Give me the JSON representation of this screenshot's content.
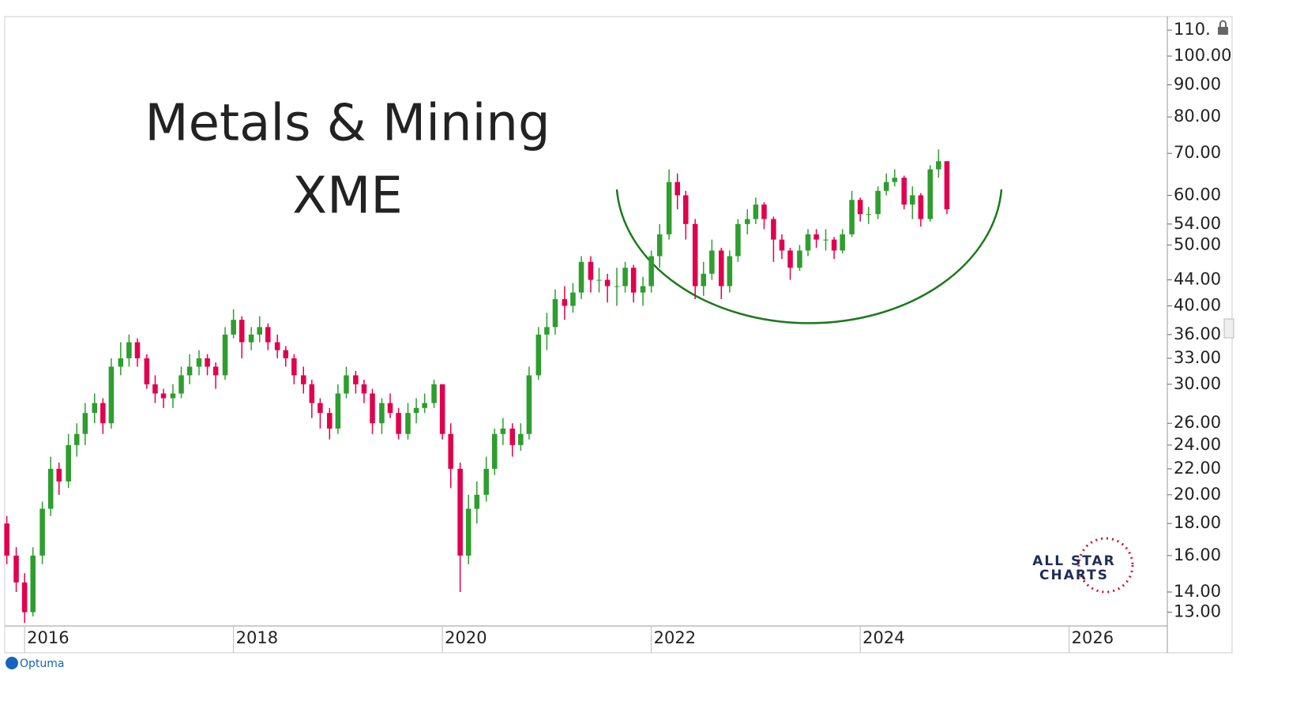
{
  "chart_data": {
    "type": "candlestick",
    "title": "Metals & Mining",
    "subtitle": "XME",
    "log_scale": true,
    "up_color": "#2e9e2e",
    "down_color": "#e0004d",
    "xlim": [
      2015.81,
      2026.94
    ],
    "xticks": [
      2016,
      2018,
      2020,
      2022,
      2024,
      2026
    ],
    "ylim": [
      12.36,
      115.6
    ],
    "yticks": [
      {
        "value": 110,
        "label": "110."
      },
      {
        "value": 100,
        "label": "100.00"
      },
      {
        "value": 90,
        "label": "90.00"
      },
      {
        "value": 80,
        "label": "80.00"
      },
      {
        "value": 70,
        "label": "70.00"
      },
      {
        "value": 60,
        "label": "60.00"
      },
      {
        "value": 54,
        "label": "54.00"
      },
      {
        "value": 50,
        "label": "50.00"
      },
      {
        "value": 44,
        "label": "44.00"
      },
      {
        "value": 40,
        "label": "40.00"
      },
      {
        "value": 36,
        "label": "36.00"
      },
      {
        "value": 33,
        "label": "33.00"
      },
      {
        "value": 30,
        "label": "30.00"
      },
      {
        "value": 26,
        "label": "26.00"
      },
      {
        "value": 24,
        "label": "24.00"
      },
      {
        "value": 22,
        "label": "22.00"
      },
      {
        "value": 20,
        "label": "20.00"
      },
      {
        "value": 18,
        "label": "18.00"
      },
      {
        "value": 16,
        "label": "16.00"
      },
      {
        "value": 14,
        "label": "14.00"
      },
      {
        "value": 13,
        "label": "13.00"
      }
    ],
    "x": [
      2015.83,
      2015.92,
      2016.0,
      2016.08,
      2016.17,
      2016.25,
      2016.33,
      2016.42,
      2016.5,
      2016.58,
      2016.67,
      2016.75,
      2016.83,
      2016.92,
      2017.0,
      2017.08,
      2017.17,
      2017.25,
      2017.33,
      2017.42,
      2017.5,
      2017.58,
      2017.67,
      2017.75,
      2017.83,
      2017.92,
      2018.0,
      2018.08,
      2018.17,
      2018.25,
      2018.33,
      2018.42,
      2018.5,
      2018.58,
      2018.67,
      2018.75,
      2018.83,
      2018.92,
      2019.0,
      2019.08,
      2019.17,
      2019.25,
      2019.33,
      2019.42,
      2019.5,
      2019.58,
      2019.67,
      2019.75,
      2019.83,
      2019.92,
      2020.0,
      2020.08,
      2020.17,
      2020.25,
      2020.33,
      2020.42,
      2020.5,
      2020.58,
      2020.67,
      2020.75,
      2020.83,
      2020.92,
      2021.0,
      2021.08,
      2021.17,
      2021.25,
      2021.33,
      2021.42,
      2021.5,
      2021.58,
      2021.67,
      2021.75,
      2021.83,
      2021.92,
      2022.0,
      2022.08,
      2022.17,
      2022.25,
      2022.33,
      2022.42,
      2022.5,
      2022.58,
      2022.67,
      2022.75,
      2022.83,
      2022.92,
      2023.0,
      2023.08,
      2023.17,
      2023.25,
      2023.33,
      2023.42,
      2023.5,
      2023.58,
      2023.67,
      2023.75,
      2023.83,
      2023.92,
      2024.0,
      2024.08,
      2024.17,
      2024.25,
      2024.33,
      2024.42,
      2024.5,
      2024.58,
      2024.67,
      2024.75,
      2024.83
    ],
    "open": [
      18,
      16,
      14.5,
      13,
      16,
      19,
      22,
      21,
      24,
      25,
      27,
      28,
      26,
      32,
      33,
      35,
      33,
      30,
      29,
      28.5,
      29,
      31,
      32,
      33,
      32,
      31,
      36,
      38,
      35,
      36,
      37,
      35,
      34,
      33,
      31,
      30,
      28,
      27,
      25.5,
      29,
      31,
      30,
      29,
      26,
      28,
      27,
      25,
      27,
      27.5,
      28,
      30,
      25,
      22,
      16,
      19,
      20,
      22,
      25,
      25.5,
      24,
      25,
      31,
      36,
      37,
      41,
      40,
      42,
      47,
      44,
      44,
      43,
      43,
      46,
      42,
      43,
      48,
      52,
      63,
      60,
      54,
      43,
      45,
      49,
      43,
      48,
      54,
      55,
      58,
      55,
      51,
      49,
      46,
      49,
      52,
      51,
      51,
      49,
      52,
      59,
      56,
      56,
      61,
      63,
      64,
      58,
      60,
      55,
      66,
      68
    ],
    "high": [
      18.5,
      16.5,
      15,
      16.5,
      19.5,
      23,
      22.5,
      25,
      26,
      28,
      29,
      28.5,
      33,
      35,
      36,
      35.5,
      33.5,
      31,
      29.5,
      30,
      32,
      33.5,
      34,
      33.5,
      32.5,
      37,
      39.5,
      38.5,
      37,
      38.5,
      37.5,
      36,
      34.5,
      33.5,
      32,
      30.5,
      28.5,
      27.5,
      30,
      32,
      31.5,
      30.5,
      29.5,
      28.5,
      29,
      27.5,
      28,
      28.5,
      29,
      30.5,
      30,
      26,
      22.5,
      20,
      21,
      23,
      25.5,
      26.5,
      26,
      26,
      32,
      37,
      39,
      42.5,
      43,
      43.5,
      48,
      48,
      46,
      45,
      46,
      47,
      46.5,
      44.5,
      49,
      54,
      66,
      65,
      61,
      55,
      47,
      51,
      49.5,
      49,
      55,
      57,
      59.5,
      58.5,
      55.5,
      52,
      49.5,
      50,
      53,
      53,
      53,
      51.5,
      53,
      61,
      59.5,
      57.5,
      62,
      65,
      66,
      64.5,
      62,
      60.5,
      67,
      71,
      68
    ],
    "low": [
      15.5,
      14,
      12.5,
      12.8,
      15.5,
      18.5,
      20,
      20.5,
      23,
      24,
      26,
      25,
      25.5,
      31,
      32,
      32,
      29.5,
      28,
      27.5,
      27.5,
      28.5,
      30,
      31,
      31,
      29.5,
      30.5,
      35.5,
      33,
      34,
      35,
      34,
      33,
      32,
      30,
      29,
      26.5,
      25.5,
      24.5,
      25,
      28.5,
      29,
      28,
      25,
      25,
      26.5,
      24.5,
      24.5,
      26,
      27,
      27.5,
      24.5,
      20.5,
      14,
      15.5,
      18,
      19.5,
      21.5,
      24,
      23,
      23.5,
      24.5,
      30.5,
      34,
      36,
      38,
      39,
      41,
      42,
      42,
      40.5,
      40,
      42,
      40.5,
      40,
      42,
      46,
      51,
      57,
      51,
      41,
      41.5,
      44,
      41,
      42,
      47,
      52,
      54,
      53,
      47,
      47.5,
      44,
      45.5,
      48,
      49.5,
      49,
      47.5,
      48.5,
      51.5,
      54.5,
      54,
      55,
      60,
      62,
      57,
      55,
      53.5,
      54.5,
      64,
      56
    ],
    "close": [
      16,
      14.5,
      13,
      16,
      19,
      22,
      21,
      24,
      25,
      27,
      28,
      26,
      32,
      33,
      35,
      33,
      30,
      29,
      28.5,
      29,
      31,
      32,
      33,
      32,
      31,
      36,
      38,
      35,
      36,
      37,
      35,
      34,
      33,
      31,
      30,
      28,
      27,
      25.5,
      29,
      31,
      30,
      29,
      26,
      28,
      27,
      25,
      27,
      27.5,
      28,
      30,
      25,
      22,
      16,
      19,
      20,
      22,
      25,
      25.5,
      24,
      25,
      31,
      36,
      37,
      41,
      40,
      42,
      47,
      44,
      44,
      43,
      43,
      46,
      42,
      43,
      48,
      52,
      63,
      60,
      54,
      43,
      45,
      49,
      43,
      48,
      54,
      55,
      58,
      55,
      51,
      49,
      46,
      49,
      52,
      51,
      51,
      49,
      52,
      59,
      56,
      56,
      61,
      63,
      64,
      58,
      60,
      55,
      66,
      68,
      57
    ]
  },
  "branding": {
    "logo_lines": [
      "ALL STAR",
      "CHARTS"
    ],
    "app": "Optuma"
  }
}
